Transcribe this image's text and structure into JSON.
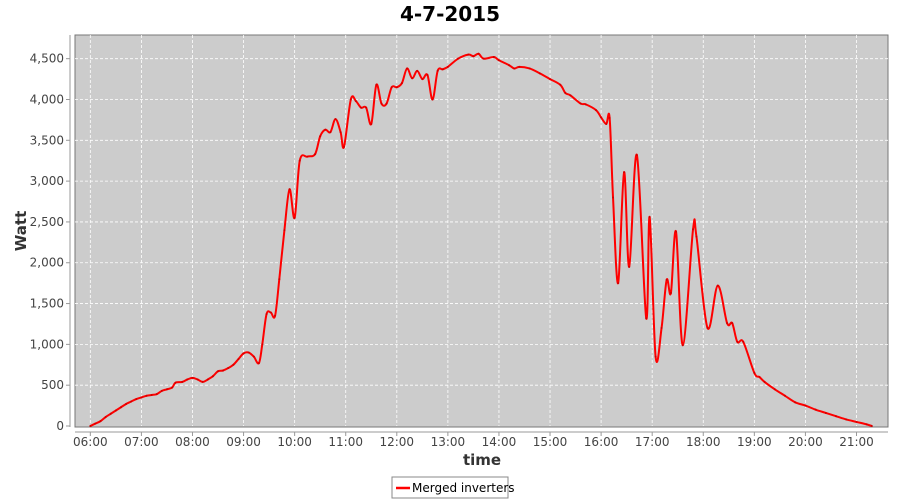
{
  "chart_data": {
    "type": "line",
    "title": "4-7-2015",
    "xlabel": "time",
    "ylabel": "Watt",
    "xlim": [
      "05:42",
      "21:37"
    ],
    "ylim": [
      0,
      4790
    ],
    "grid": true,
    "legend_position": "bottom",
    "x_ticks": [
      "06:00",
      "07:00",
      "08:00",
      "09:00",
      "10:00",
      "11:00",
      "12:00",
      "13:00",
      "14:00",
      "15:00",
      "16:00",
      "17:00",
      "18:00",
      "19:00",
      "20:00",
      "21:00"
    ],
    "y_ticks": [
      0,
      500,
      1000,
      1500,
      2000,
      2500,
      3000,
      3500,
      4000,
      4500
    ],
    "y_tick_labels": [
      "0",
      "500",
      "1,000",
      "1,500",
      "2,000",
      "2,500",
      "3,000",
      "3,500",
      "4,000",
      "4,500"
    ],
    "colors": {
      "series": "#ff0000",
      "plot_background": "#cccccc",
      "grid": "#ffffff"
    },
    "series": [
      {
        "name": "Merged inverters",
        "points": [
          [
            "06:00",
            0
          ],
          [
            "06:06",
            30
          ],
          [
            "06:12",
            60
          ],
          [
            "06:18",
            110
          ],
          [
            "06:24",
            150
          ],
          [
            "06:30",
            190
          ],
          [
            "06:36",
            230
          ],
          [
            "06:42",
            270
          ],
          [
            "06:48",
            300
          ],
          [
            "06:54",
            330
          ],
          [
            "07:00",
            350
          ],
          [
            "07:06",
            370
          ],
          [
            "07:12",
            380
          ],
          [
            "07:18",
            390
          ],
          [
            "07:24",
            430
          ],
          [
            "07:30",
            450
          ],
          [
            "07:36",
            470
          ],
          [
            "07:40",
            530
          ],
          [
            "07:48",
            540
          ],
          [
            "07:54",
            570
          ],
          [
            "08:00",
            590
          ],
          [
            "08:06",
            570
          ],
          [
            "08:12",
            540
          ],
          [
            "08:18",
            570
          ],
          [
            "08:24",
            610
          ],
          [
            "08:30",
            670
          ],
          [
            "08:36",
            680
          ],
          [
            "08:42",
            710
          ],
          [
            "08:48",
            750
          ],
          [
            "08:54",
            820
          ],
          [
            "09:00",
            890
          ],
          [
            "09:06",
            900
          ],
          [
            "09:12",
            850
          ],
          [
            "09:18",
            770
          ],
          [
            "09:22",
            1000
          ],
          [
            "09:27",
            1370
          ],
          [
            "09:32",
            1390
          ],
          [
            "09:37",
            1350
          ],
          [
            "09:42",
            1800
          ],
          [
            "09:48",
            2400
          ],
          [
            "09:54",
            2900
          ],
          [
            "10:00",
            2550
          ],
          [
            "10:06",
            3250
          ],
          [
            "10:15",
            3300
          ],
          [
            "10:24",
            3330
          ],
          [
            "10:30",
            3550
          ],
          [
            "10:36",
            3630
          ],
          [
            "10:42",
            3600
          ],
          [
            "10:48",
            3760
          ],
          [
            "10:54",
            3600
          ],
          [
            "10:58",
            3420
          ],
          [
            "11:06",
            4000
          ],
          [
            "11:12",
            3980
          ],
          [
            "11:18",
            3900
          ],
          [
            "11:24",
            3900
          ],
          [
            "11:30",
            3700
          ],
          [
            "11:36",
            4180
          ],
          [
            "11:42",
            3950
          ],
          [
            "11:48",
            3950
          ],
          [
            "11:54",
            4150
          ],
          [
            "12:00",
            4150
          ],
          [
            "12:06",
            4200
          ],
          [
            "12:12",
            4380
          ],
          [
            "12:18",
            4260
          ],
          [
            "12:24",
            4350
          ],
          [
            "12:30",
            4250
          ],
          [
            "12:36",
            4300
          ],
          [
            "12:42",
            4000
          ],
          [
            "12:48",
            4350
          ],
          [
            "12:54",
            4370
          ],
          [
            "13:00",
            4400
          ],
          [
            "13:12",
            4500
          ],
          [
            "13:24",
            4550
          ],
          [
            "13:30",
            4530
          ],
          [
            "13:36",
            4560
          ],
          [
            "13:42",
            4500
          ],
          [
            "13:54",
            4520
          ],
          [
            "14:00",
            4480
          ],
          [
            "14:12",
            4420
          ],
          [
            "14:18",
            4380
          ],
          [
            "14:24",
            4400
          ],
          [
            "14:36",
            4380
          ],
          [
            "14:48",
            4320
          ],
          [
            "15:00",
            4250
          ],
          [
            "15:12",
            4180
          ],
          [
            "15:18",
            4080
          ],
          [
            "15:24",
            4050
          ],
          [
            "15:36",
            3950
          ],
          [
            "15:42",
            3940
          ],
          [
            "15:54",
            3870
          ],
          [
            "16:00",
            3780
          ],
          [
            "16:06",
            3700
          ],
          [
            "16:10",
            3775
          ],
          [
            "16:14",
            2800
          ],
          [
            "16:20",
            1750
          ],
          [
            "16:27",
            3110
          ],
          [
            "16:33",
            1950
          ],
          [
            "16:42",
            3320
          ],
          [
            "16:53",
            1320
          ],
          [
            "16:57",
            2560
          ],
          [
            "17:04",
            850
          ],
          [
            "17:11",
            1200
          ],
          [
            "17:17",
            1790
          ],
          [
            "17:22",
            1630
          ],
          [
            "17:28",
            2380
          ],
          [
            "17:36",
            990
          ],
          [
            "17:48",
            2410
          ],
          [
            "17:52",
            2320
          ],
          [
            "18:05",
            1200
          ],
          [
            "18:17",
            1720
          ],
          [
            "18:28",
            1260
          ],
          [
            "18:34",
            1260
          ],
          [
            "18:40",
            1030
          ],
          [
            "18:47",
            1030
          ],
          [
            "19:00",
            650
          ],
          [
            "19:06",
            600
          ],
          [
            "19:12",
            540
          ],
          [
            "19:24",
            450
          ],
          [
            "19:36",
            370
          ],
          [
            "19:48",
            290
          ],
          [
            "20:00",
            250
          ],
          [
            "20:12",
            200
          ],
          [
            "20:24",
            160
          ],
          [
            "20:36",
            120
          ],
          [
            "20:48",
            80
          ],
          [
            "21:00",
            50
          ],
          [
            "21:12",
            20
          ],
          [
            "21:18",
            0
          ]
        ]
      }
    ]
  }
}
